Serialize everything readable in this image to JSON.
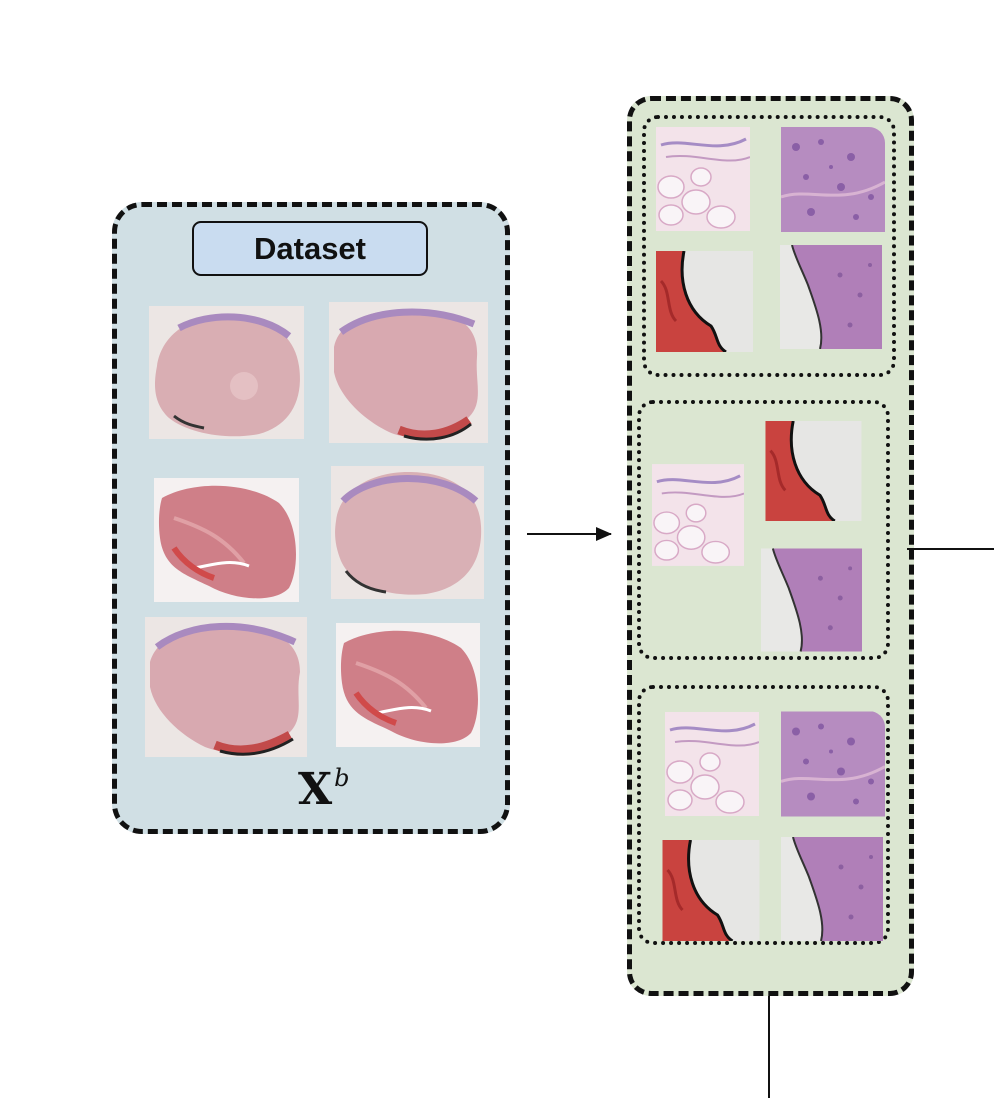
{
  "dataset": {
    "label": "Dataset",
    "symbol_base": "X",
    "symbol_superscript": "b",
    "slide_count": 6,
    "background_color": "#d0dfe4",
    "label_color": "#c9dcf0"
  },
  "bags": {
    "count": 3,
    "patches_per_bag": 4,
    "background_color": "#dbe6d1",
    "patch_types": [
      "adipose-tissue",
      "dense-purple-tissue",
      "red-blood-tissue",
      "purple-tissue-edge"
    ]
  }
}
